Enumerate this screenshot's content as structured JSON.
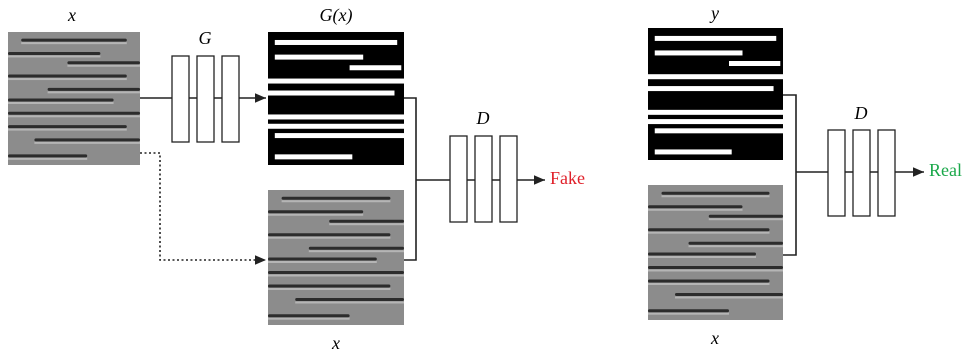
{
  "left": {
    "input_label": "x",
    "generator_label": "G",
    "generated_label": "G(x)",
    "condition_label": "x",
    "discriminator_label": "D",
    "output_label": "Fake"
  },
  "right": {
    "target_label": "y",
    "condition_label": "x",
    "discriminator_label": "D",
    "output_label": "Real"
  }
}
